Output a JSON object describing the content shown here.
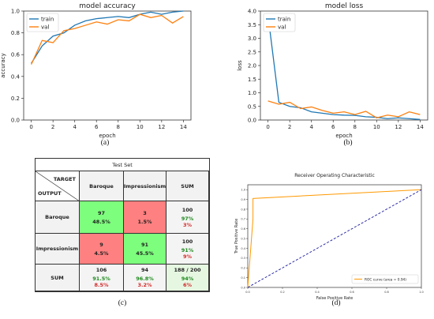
{
  "captions": {
    "a": "(a)",
    "b": "(b)",
    "c": "(c)",
    "d": "(d)"
  },
  "chart_data": [
    {
      "type": "line",
      "title": "model accuracy",
      "xlabel": "epoch",
      "ylabel": "accuracy",
      "xlim": [
        -0.7,
        14.7
      ],
      "ylim": [
        0.0,
        1.0
      ],
      "xticks": [
        "0",
        "2",
        "4",
        "6",
        "8",
        "10",
        "12",
        "14"
      ],
      "yticks": [
        "0.0",
        "0.2",
        "0.4",
        "0.6",
        "0.8",
        "1.0"
      ],
      "legend_position": "top-left",
      "x": [
        0,
        1,
        2,
        3,
        4,
        5,
        6,
        7,
        8,
        9,
        10,
        11,
        12,
        13,
        14
      ],
      "series": [
        {
          "name": "train",
          "color": "#1f77b4",
          "values": [
            0.52,
            0.68,
            0.77,
            0.8,
            0.87,
            0.91,
            0.93,
            0.94,
            0.95,
            0.94,
            0.97,
            0.99,
            0.97,
            0.99,
            1.0
          ]
        },
        {
          "name": "val",
          "color": "#ff7f0e",
          "values": [
            0.51,
            0.73,
            0.71,
            0.82,
            0.84,
            0.87,
            0.9,
            0.88,
            0.92,
            0.91,
            0.97,
            0.94,
            0.96,
            0.89,
            0.95
          ]
        }
      ]
    },
    {
      "type": "line",
      "title": "model loss",
      "xlabel": "epoch",
      "ylabel": "loss",
      "xlim": [
        -0.7,
        14.7
      ],
      "ylim": [
        0.0,
        4.0
      ],
      "xticks": [
        "0",
        "2",
        "4",
        "6",
        "8",
        "10",
        "12",
        "14"
      ],
      "yticks": [
        "0.0",
        "0.5",
        "1.0",
        "1.5",
        "2.0",
        "2.5",
        "3.0",
        "3.5",
        "4.0"
      ],
      "legend_position": "top-left",
      "x": [
        0,
        1,
        2,
        3,
        4,
        5,
        6,
        7,
        8,
        9,
        10,
        11,
        12,
        13,
        14
      ],
      "series": [
        {
          "name": "train",
          "color": "#1f77b4",
          "values": [
            3.85,
            0.65,
            0.5,
            0.45,
            0.3,
            0.25,
            0.2,
            0.18,
            0.17,
            0.12,
            0.1,
            0.05,
            0.08,
            0.05,
            0.02
          ]
        },
        {
          "name": "val",
          "color": "#ff7f0e",
          "values": [
            0.7,
            0.58,
            0.65,
            0.42,
            0.48,
            0.35,
            0.25,
            0.3,
            0.2,
            0.32,
            0.08,
            0.18,
            0.12,
            0.3,
            0.2
          ]
        }
      ]
    },
    {
      "type": "table",
      "title": "Test Set",
      "target_label": "TARGET",
      "output_label": "OUTPUT",
      "columns": [
        "Baroque",
        "Impressionism",
        "SUM"
      ],
      "rows": [
        {
          "label": "Baroque",
          "cells": [
            {
              "value": "97",
              "pct": "48.5%",
              "bg": "#7dff7d"
            },
            {
              "value": "3",
              "pct": "1.5%",
              "bg": "#ff8080"
            },
            {
              "value": "100",
              "pct": "97%",
              "pct2": "3%",
              "bg": "#f4f4f4"
            }
          ]
        },
        {
          "label": "Impressionism",
          "cells": [
            {
              "value": "9",
              "pct": "4.5%",
              "bg": "#ff8080"
            },
            {
              "value": "91",
              "pct": "45.5%",
              "bg": "#7dff7d"
            },
            {
              "value": "100",
              "pct": "91%",
              "pct2": "9%",
              "bg": "#f4f4f4"
            }
          ]
        },
        {
          "label": "SUM",
          "cells": [
            {
              "value": "106",
              "pct": "91.5%",
              "pct2": "8.5%",
              "bg": "#f4f4f4"
            },
            {
              "value": "94",
              "pct": "96.8%",
              "pct2": "3.2%",
              "bg": "#f4f4f4"
            },
            {
              "value": "188 / 200",
              "pct": "94%",
              "pct2": "6%",
              "bg": "#e6f7e1"
            }
          ]
        }
      ]
    },
    {
      "type": "line",
      "title": "Receiver Operating Characteristic",
      "xlabel": "False Positive Rate",
      "ylabel": "True Positive Rate",
      "xlim": [
        0.0,
        1.0
      ],
      "ylim": [
        0.0,
        1.05
      ],
      "xticks": [
        "0.0",
        "0.2",
        "0.4",
        "0.6",
        "0.8",
        "1.0"
      ],
      "yticks": [
        "0.0",
        "0.1",
        "0.2",
        "0.3",
        "0.4",
        "0.5",
        "0.6",
        "0.7",
        "0.8",
        "0.9",
        "1.0"
      ],
      "legend_position": "bottom-right",
      "series": [
        {
          "name": "ROC curve (area = 0.94)",
          "color": "#ff9900",
          "x": [
            0.0,
            0.0,
            0.03,
            0.03,
            1.0
          ],
          "y": [
            0.0,
            0.0,
            0.7,
            0.91,
            1.0
          ]
        },
        {
          "name": "",
          "color": "#1a1aa0",
          "dashed": true,
          "x": [
            0.0,
            1.0
          ],
          "y": [
            0.0,
            1.0
          ]
        }
      ]
    }
  ]
}
